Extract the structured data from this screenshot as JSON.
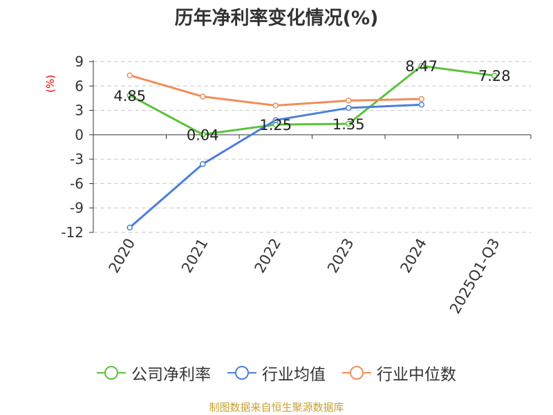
{
  "title": "历年净利率变化情况(%)",
  "unit_label": "(%)",
  "source": "制图数据来自恒生聚源数据库",
  "chart_data": {
    "type": "line",
    "title": "历年净利率变化情况(%)",
    "ylabel": "(%)",
    "categories": [
      "2020",
      "2021",
      "2022",
      "2023",
      "2024",
      "2025Q1-Q3"
    ],
    "ylim": [
      -12,
      9
    ],
    "yticks": [
      9,
      6,
      3,
      0,
      -3,
      -6,
      -9,
      -12
    ],
    "grid": true,
    "legend_position": "bottom",
    "series": [
      {
        "name": "公司净利率",
        "color": "#5ac23a",
        "values": [
          4.85,
          0.04,
          1.25,
          1.35,
          8.47,
          7.28
        ],
        "labels": [
          "4.85",
          "0.04",
          "1.25",
          "1.35",
          "8.47",
          "7.28"
        ]
      },
      {
        "name": "行业均值",
        "color": "#4a7fda",
        "values": [
          -11.4,
          -3.6,
          1.8,
          3.3,
          3.7,
          null
        ]
      },
      {
        "name": "行业中位数",
        "color": "#f28c5a",
        "values": [
          7.3,
          4.7,
          3.6,
          4.2,
          4.4,
          null
        ]
      }
    ]
  }
}
